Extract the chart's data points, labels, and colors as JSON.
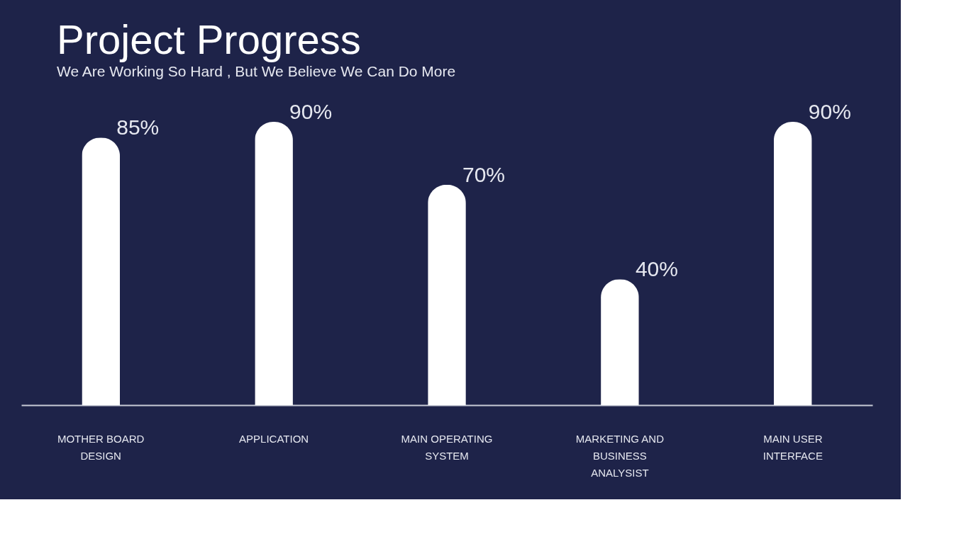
{
  "chart_data": {
    "type": "bar",
    "title": "Project Progress",
    "subtitle": "We Are Working So Hard , But We Believe We Can Do More",
    "categories": [
      "MOTHER BOARD DESIGN",
      "APPLICATION",
      "MAIN OPERATING SYSTEM",
      "MARKETING AND BUSINESS ANALYSIST",
      "MAIN USER INTERFACE"
    ],
    "values": [
      85,
      90,
      70,
      40,
      90
    ],
    "value_labels": [
      "85%",
      "90%",
      "70%",
      "40%",
      "90%"
    ],
    "color": "#ffffff",
    "grid": false,
    "tick_labels": "x"
  }
}
